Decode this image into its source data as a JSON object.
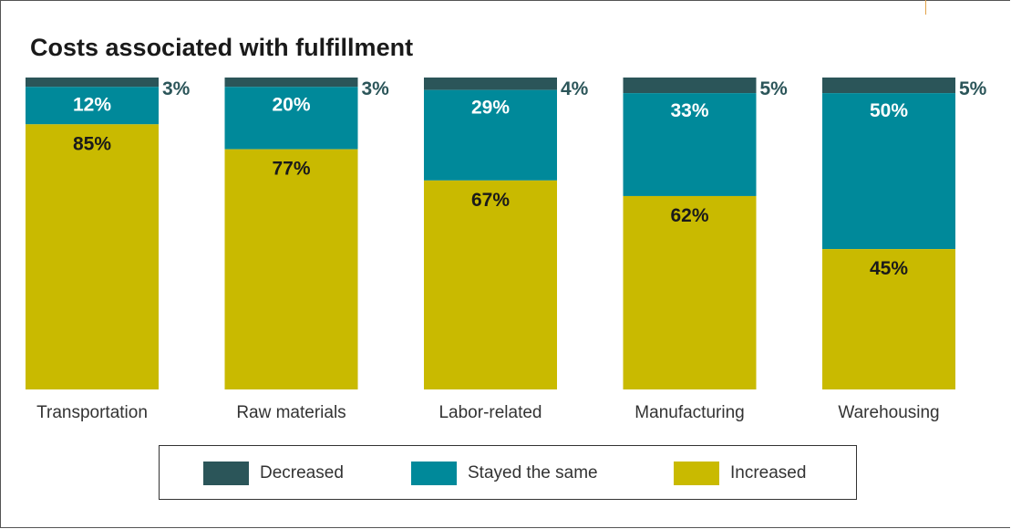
{
  "title": "Costs associated with fulfillment",
  "colors": {
    "decreased": "#2b5559",
    "stayed_same": "#00899a",
    "increased": "#c9ba00",
    "label_dark": "#1a1a1a",
    "label_light": "#ffffff",
    "label_outside": "#2b5559"
  },
  "legend": {
    "decreased": "Decreased",
    "stayed_same": "Stayed the same",
    "increased": "Increased"
  },
  "chart_data": {
    "type": "bar",
    "stacked": true,
    "categories": [
      "Transportation",
      "Raw materials",
      "Labor-related",
      "Manufacturing",
      "Warehousing"
    ],
    "series": [
      {
        "name": "Increased",
        "values": [
          85,
          77,
          67,
          62,
          45
        ],
        "labels": [
          "85%",
          "77%",
          "67%",
          "62%",
          "45%"
        ]
      },
      {
        "name": "Stayed the same",
        "values": [
          12,
          20,
          29,
          33,
          50
        ],
        "labels": [
          "12%",
          "20%",
          "29%",
          "33%",
          "50%"
        ]
      },
      {
        "name": "Decreased",
        "values": [
          3,
          3,
          4,
          5,
          5
        ],
        "labels": [
          "3%",
          "3%",
          "4%",
          "5%",
          "5%"
        ]
      }
    ],
    "ylim": [
      0,
      100
    ],
    "grid": false,
    "legend_position": "bottom"
  }
}
